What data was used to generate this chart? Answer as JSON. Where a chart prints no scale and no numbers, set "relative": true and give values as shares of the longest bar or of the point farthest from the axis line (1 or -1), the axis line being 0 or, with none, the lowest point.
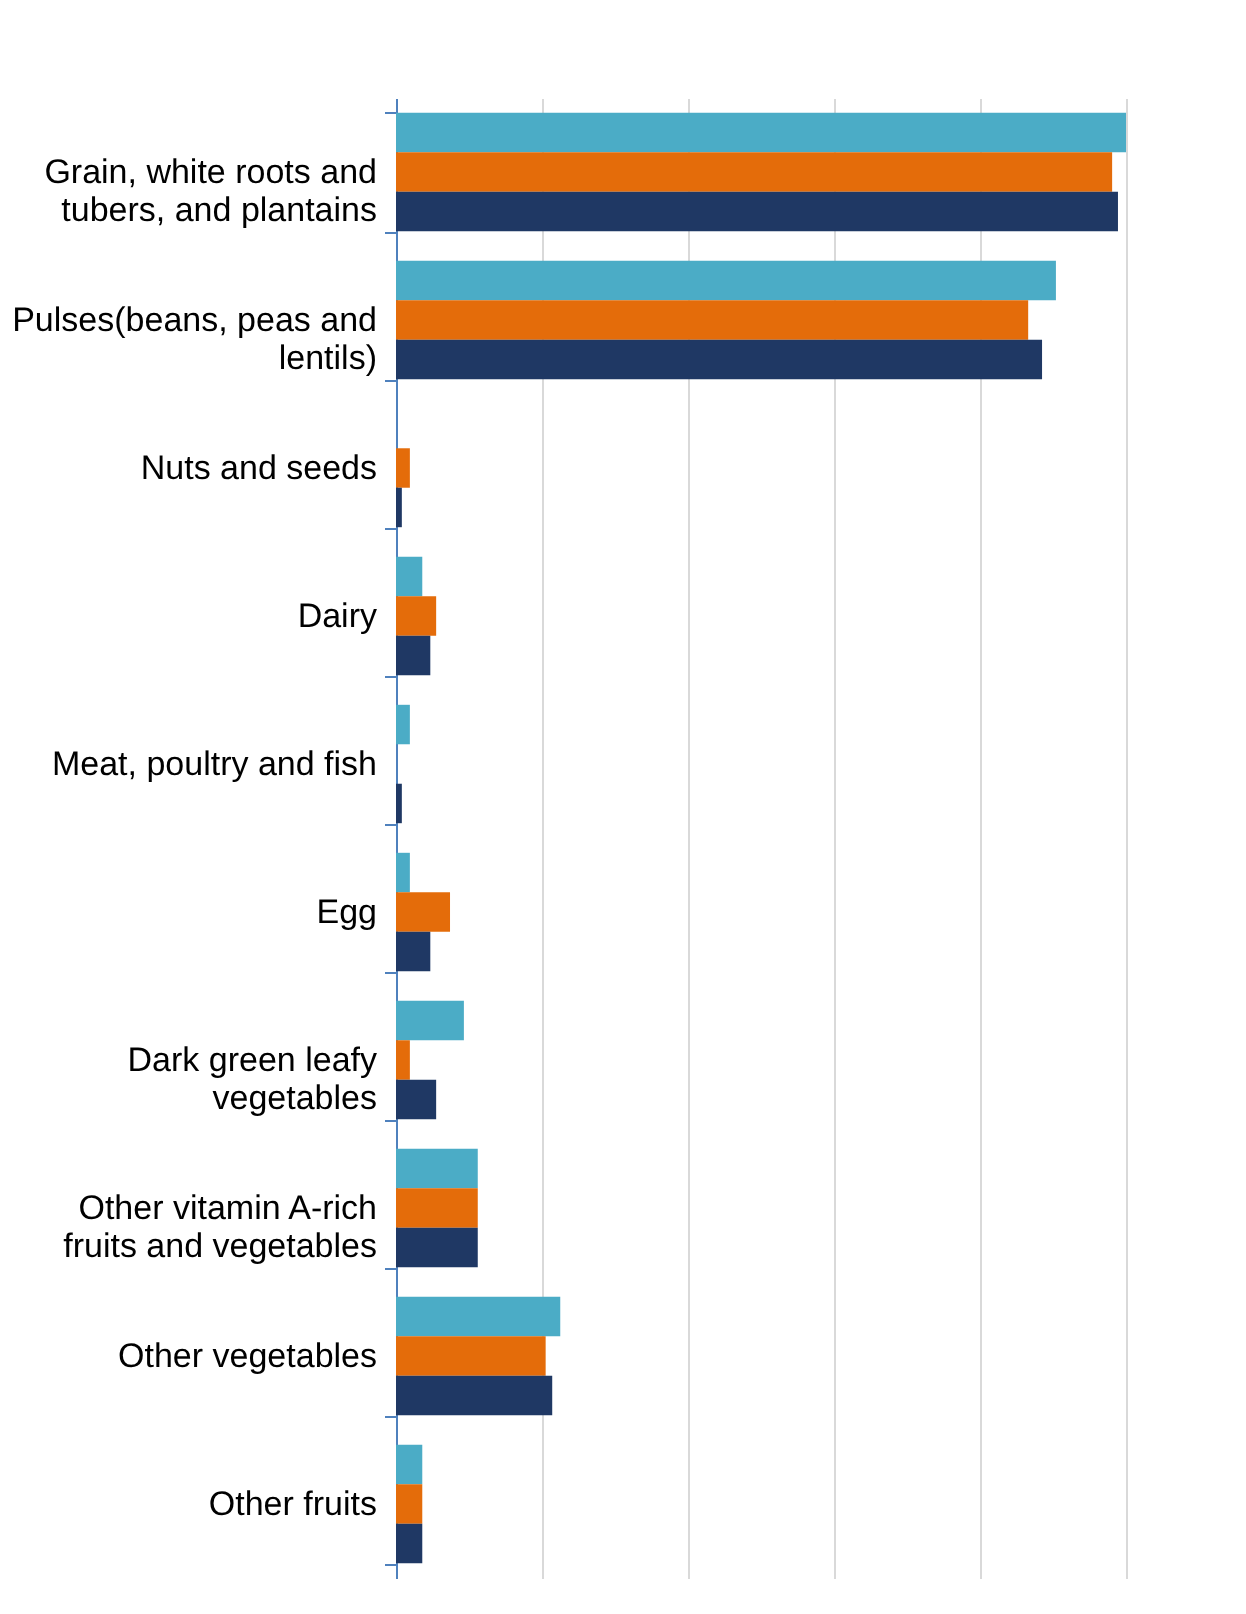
{
  "chart_data": {
    "type": "bar",
    "orientation": "horizontal",
    "relative": true,
    "grid": "x",
    "categories": [
      "Grain, white roots and tubers, and plantains",
      "Pulses(beans, peas and lentils)",
      "Nuts and seeds",
      "Dairy",
      "Meat, poultry and fish",
      "Egg",
      "Dark green leafy vegetables",
      "Other vitamin A-rich fruits and vegetables",
      "Other vegetables",
      "Other fruits"
    ],
    "series": [
      {
        "color": "#4bacc6",
        "values": [
          1,
          0.904,
          0,
          0.036,
          0.019,
          0.019,
          0.093,
          0.112,
          0.225,
          0.036
        ]
      },
      {
        "color": "#e46c0a",
        "values": [
          0.981,
          0.866,
          0.019,
          0.055,
          0,
          0.074,
          0.019,
          0.112,
          0.205,
          0.036
        ]
      },
      {
        "color": "#1f3864",
        "values": [
          0.989,
          0.885,
          0.008,
          0.047,
          0.008,
          0.047,
          0.055,
          0.112,
          0.214,
          0.036
        ]
      }
    ]
  }
}
